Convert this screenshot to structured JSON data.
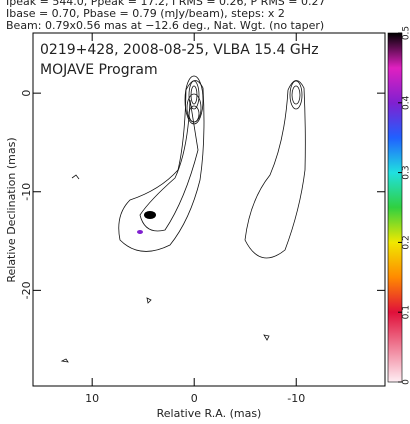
{
  "header": {
    "lines": [
      "Ipeak = 544.0, Ppeak = 17.2, I RMS = 0.26, P RMS = 0.27",
      "Ibase = 0.70, Pbase = 0.79 (mJy/beam), steps: x 2",
      "Beam: 0.79x0.56 mas at −12.6 deg., Nat. Wgt. (no taper)"
    ]
  },
  "chart_data": {
    "type": "contour",
    "title": "0219+428, 2008-08-25, VLBA 15.4 GHz",
    "subtitle": "MOJAVE Program",
    "xlabel": "Relative R.A. (mas)",
    "ylabel": "Relative Declination (mas)",
    "xlim": [
      15.8,
      -18.7
    ],
    "ylim": [
      -29.7,
      6.1
    ],
    "xticks": [
      10,
      0,
      -10
    ],
    "yticks": [
      0,
      -10,
      -20
    ],
    "colorbar": {
      "lim": [
        0,
        0.5
      ],
      "ticks": [
        0,
        0.1,
        0.2,
        0.3,
        0.4,
        0.5
      ]
    }
  }
}
